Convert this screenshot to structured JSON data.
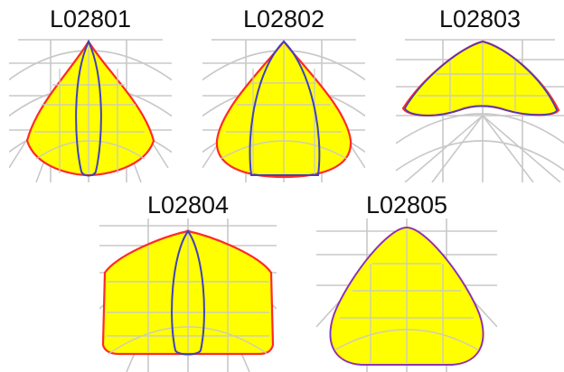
{
  "panels": [
    {
      "id": "p1",
      "label": "L02801"
    },
    {
      "id": "p2",
      "label": "L02802"
    },
    {
      "id": "p3",
      "label": "L02803"
    },
    {
      "id": "p4",
      "label": "L02804"
    },
    {
      "id": "p5",
      "label": "L02805"
    }
  ],
  "colors": {
    "grid": "#c8c8c8",
    "fill": "#ffff00",
    "outline_outer": "#ff2a2a",
    "outline_inner": "#4040c0"
  }
}
